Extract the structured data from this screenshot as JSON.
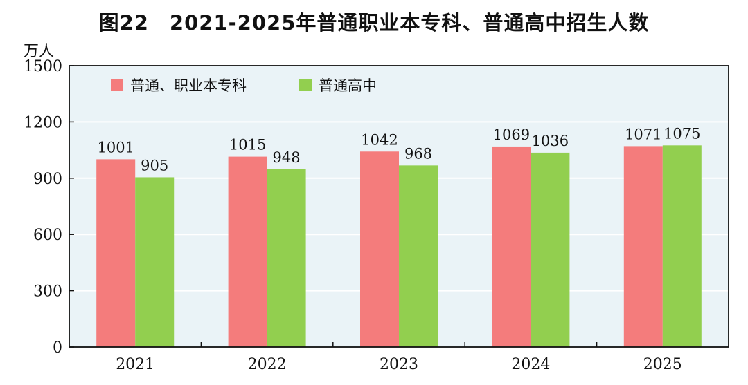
{
  "chart_data": {
    "type": "bar",
    "title": "图22　2021-2025年普通职业本专科、普通高中招生人数",
    "unit_label": "万人",
    "categories": [
      "2021",
      "2022",
      "2023",
      "2024",
      "2025"
    ],
    "series": [
      {
        "name": "普通、职业本专科",
        "values": [
          1001,
          1015,
          1042,
          1069,
          1071
        ],
        "color": "#f47c7c"
      },
      {
        "name": "普通高中",
        "values": [
          905,
          948,
          968,
          1036,
          1075
        ],
        "color": "#92cf4f"
      }
    ],
    "ylim": [
      0,
      1500
    ],
    "yticks": [
      0,
      300,
      600,
      900,
      1200,
      1500
    ],
    "grid": true,
    "legend_position": "top-left",
    "plot_background": "#eaf3f7"
  }
}
